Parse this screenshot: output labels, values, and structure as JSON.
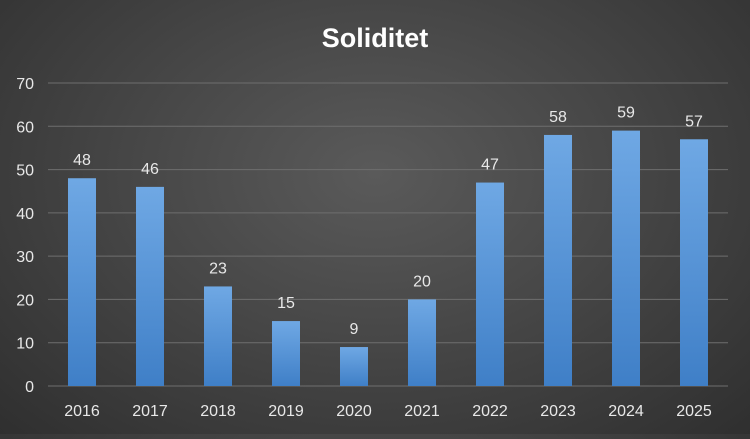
{
  "chart_data": {
    "type": "bar",
    "title": "Soliditet",
    "xlabel": "",
    "ylabel": "",
    "categories": [
      "2016",
      "2017",
      "2018",
      "2019",
      "2020",
      "2021",
      "2022",
      "2023",
      "2024",
      "2025"
    ],
    "values": [
      48,
      46,
      23,
      15,
      9,
      20,
      47,
      58,
      59,
      57
    ],
    "data_labels": [
      "48",
      "46",
      "23",
      "15",
      "9",
      "20",
      "47",
      "58",
      "59",
      "57"
    ],
    "ylim": [
      0,
      70
    ],
    "yticks": [
      "0",
      "10",
      "20",
      "30",
      "40",
      "50",
      "60",
      "70"
    ],
    "grid": true,
    "legend": "none",
    "colors": {
      "bar_top": "#6fa8e4",
      "bar_bottom": "#3f7fc7",
      "gridline": "#6e6e6e",
      "text": "#e8e8e8",
      "title": "#ffffff"
    }
  }
}
